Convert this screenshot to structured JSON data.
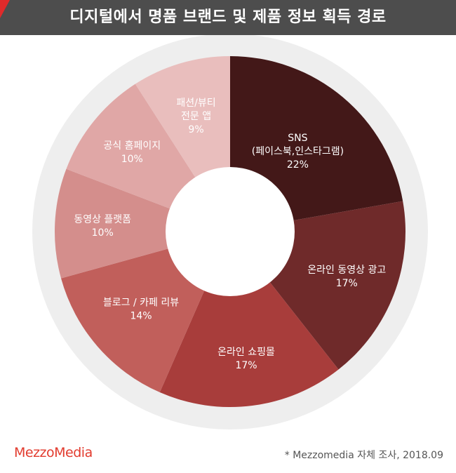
{
  "header": {
    "title": "디지털에서 명품 브랜드 및 제품 정보 획득 경로"
  },
  "colors": {
    "title_bg": "#4d4d4d",
    "accent": "#e02a2a",
    "ring": "#eeeeee",
    "slices": [
      "#431818",
      "#6f2a2a",
      "#a83d3b",
      "#c15f5b",
      "#d48e8c",
      "#e0a7a6",
      "#e9bebd"
    ],
    "label_dark": "#ffffff"
  },
  "chart_data": {
    "type": "pie",
    "title": "디지털에서 명품 브랜드 및 제품 정보 획득 경로",
    "slices": [
      {
        "lines": [
          "SNS",
          "(페이스북,인스타그램)",
          "22%"
        ],
        "value": 22
      },
      {
        "lines": [
          "온라인 동영상 광고",
          "17%"
        ],
        "value": 17
      },
      {
        "lines": [
          "온라인 쇼핑몰",
          "17%"
        ],
        "value": 17
      },
      {
        "lines": [
          "블로그 / 카페 리뷰",
          "14%"
        ],
        "value": 14
      },
      {
        "lines": [
          "동영상 플랫폼",
          "10%"
        ],
        "value": 10
      },
      {
        "lines": [
          "공식 홈페이지",
          "10%"
        ],
        "value": 10
      },
      {
        "lines": [
          "패션/뷰티",
          "전문 앱",
          "9%"
        ],
        "value": 9
      }
    ],
    "legend": "none",
    "grid": false
  },
  "footer": {
    "brand": "MezzoMedia",
    "source": "* Mezzomedia 자체 조사, 2018.09"
  }
}
